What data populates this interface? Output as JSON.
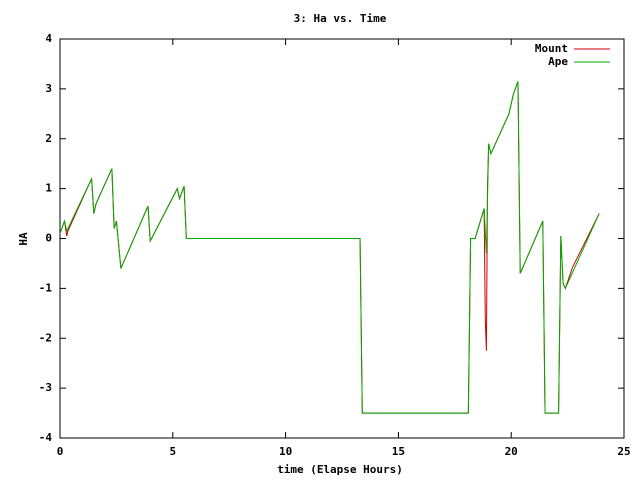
{
  "chart_data": {
    "type": "line",
    "title": "3: Ha vs. Time",
    "x_label": "time (Elapse Hours)",
    "y_label": "HA",
    "xlim": [
      0,
      25
    ],
    "xticks": [
      0,
      5,
      10,
      15,
      20,
      25
    ],
    "ylim": [
      -4,
      4
    ],
    "yticks": [
      -4,
      -3,
      -2,
      -1,
      0,
      1,
      2,
      3,
      4
    ],
    "legend": "upper right",
    "series": [
      {
        "name": "Mount",
        "color": "#cc0000",
        "x": [
          0,
          0.2,
          0.3,
          0.35,
          1.4,
          1.5,
          1.6,
          2.3,
          2.4,
          2.5,
          2.7,
          3.9,
          4.0,
          5.2,
          5.3,
          5.5,
          5.6,
          13.3,
          13.4,
          18.1,
          18.2,
          18.4,
          18.8,
          18.85,
          18.9,
          18.95,
          19.0,
          19.1,
          19.9,
          20.1,
          20.3,
          20.4,
          21.4,
          21.5,
          22.1,
          22.2,
          22.3,
          22.4,
          22.7,
          22.75,
          23.9
        ],
        "values": [
          0.1,
          0.35,
          0.05,
          0.15,
          1.2,
          0.5,
          0.7,
          1.4,
          0.2,
          0.35,
          -0.6,
          0.65,
          -0.05,
          1.0,
          0.8,
          1.05,
          0,
          0,
          -3.5,
          -3.5,
          0,
          0,
          0.6,
          -1.6,
          -2.25,
          1.05,
          1.9,
          1.7,
          2.5,
          2.9,
          3.15,
          -0.7,
          0.35,
          -3.5,
          -3.5,
          0.05,
          -0.9,
          -1.0,
          -0.6,
          -0.55,
          0.5
        ]
      },
      {
        "name": "Ape",
        "color": "#00aa00",
        "x": [
          0,
          0.2,
          0.3,
          1.4,
          1.5,
          1.6,
          2.3,
          2.4,
          2.5,
          2.7,
          3.9,
          4.0,
          5.2,
          5.3,
          5.5,
          5.6,
          13.3,
          13.4,
          18.1,
          18.2,
          18.4,
          18.8,
          18.9,
          19.0,
          19.1,
          19.9,
          20.1,
          20.3,
          20.4,
          21.4,
          21.5,
          22.1,
          22.2,
          22.3,
          22.4,
          23.9
        ],
        "values": [
          0.1,
          0.35,
          0.15,
          1.2,
          0.5,
          0.7,
          1.4,
          0.2,
          0.35,
          -0.6,
          0.65,
          -0.05,
          1.0,
          0.8,
          1.05,
          0,
          0,
          -3.5,
          -3.5,
          0,
          0,
          0.6,
          -0.3,
          1.9,
          1.7,
          2.5,
          2.9,
          3.15,
          -0.7,
          0.35,
          -3.5,
          -3.5,
          0.05,
          -0.9,
          -1.0,
          0.5
        ]
      }
    ]
  }
}
